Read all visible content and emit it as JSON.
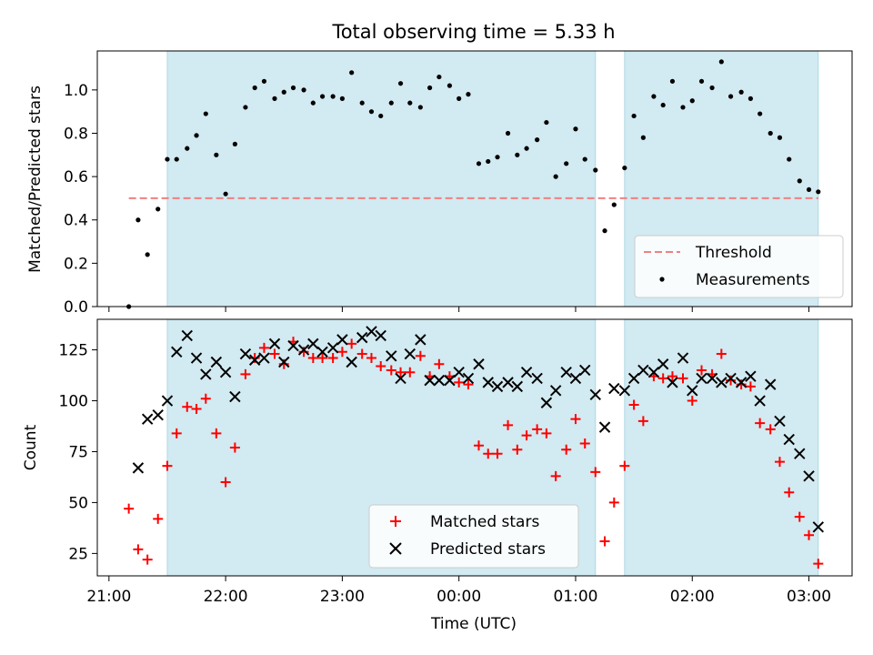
{
  "chart_data": {
    "title": "Total observing time = 5.33 h",
    "xlabel": "Time (UTC)",
    "x_tick_labels": [
      "21:00",
      "22:00",
      "23:00",
      "00:00",
      "01:00",
      "02:00",
      "03:00"
    ],
    "x_tick_hours": [
      0,
      1,
      2,
      3,
      4,
      5,
      6
    ],
    "x_origin": "21:00 UTC",
    "xlim_hours": [
      -0.1,
      6.37
    ],
    "observing_windows_hours": [
      [
        0.5,
        4.17
      ],
      [
        4.42,
        6.08
      ]
    ],
    "window_color": "#add8e6",
    "top": {
      "type": "scatter",
      "ylabel": "Matched/Predicted stars",
      "ylim": [
        0,
        1.18
      ],
      "yticks": [
        "0.0",
        "0.2",
        "0.4",
        "0.6",
        "0.8",
        "1.0"
      ],
      "yticks_values": [
        0,
        0.2,
        0.4,
        0.6,
        0.8,
        1.0
      ],
      "threshold": {
        "name": "Threshold",
        "value": 0.5,
        "x_range_hours": [
          0.17,
          6.08
        ],
        "color": "#f08080",
        "style": "dashed"
      },
      "measurements": {
        "name": "Measurements",
        "color": "#000000",
        "points": [
          [
            0.17,
            0.0
          ],
          [
            0.25,
            0.4
          ],
          [
            0.33,
            0.24
          ],
          [
            0.42,
            0.45
          ],
          [
            0.5,
            0.68
          ],
          [
            0.58,
            0.68
          ],
          [
            0.67,
            0.73
          ],
          [
            0.75,
            0.79
          ],
          [
            0.83,
            0.89
          ],
          [
            0.92,
            0.7
          ],
          [
            1.0,
            0.52
          ],
          [
            1.08,
            0.75
          ],
          [
            1.17,
            0.92
          ],
          [
            1.25,
            1.01
          ],
          [
            1.33,
            1.04
          ],
          [
            1.42,
            0.96
          ],
          [
            1.5,
            0.99
          ],
          [
            1.58,
            1.01
          ],
          [
            1.67,
            1.0
          ],
          [
            1.75,
            0.94
          ],
          [
            1.83,
            0.97
          ],
          [
            1.92,
            0.97
          ],
          [
            2.0,
            0.96
          ],
          [
            2.08,
            1.08
          ],
          [
            2.17,
            0.94
          ],
          [
            2.25,
            0.9
          ],
          [
            2.33,
            0.88
          ],
          [
            2.42,
            0.94
          ],
          [
            2.5,
            1.03
          ],
          [
            2.58,
            0.94
          ],
          [
            2.67,
            0.92
          ],
          [
            2.75,
            1.01
          ],
          [
            2.83,
            1.06
          ],
          [
            2.92,
            1.02
          ],
          [
            3.0,
            0.96
          ],
          [
            3.08,
            0.98
          ],
          [
            3.17,
            0.66
          ],
          [
            3.25,
            0.67
          ],
          [
            3.33,
            0.69
          ],
          [
            3.42,
            0.8
          ],
          [
            3.5,
            0.7
          ],
          [
            3.58,
            0.73
          ],
          [
            3.67,
            0.77
          ],
          [
            3.75,
            0.85
          ],
          [
            3.83,
            0.6
          ],
          [
            3.92,
            0.66
          ],
          [
            4.0,
            0.82
          ],
          [
            4.08,
            0.68
          ],
          [
            4.17,
            0.63
          ],
          [
            4.25,
            0.35
          ],
          [
            4.33,
            0.47
          ],
          [
            4.42,
            0.64
          ],
          [
            4.5,
            0.88
          ],
          [
            4.58,
            0.78
          ],
          [
            4.67,
            0.97
          ],
          [
            4.75,
            0.93
          ],
          [
            4.83,
            1.04
          ],
          [
            4.92,
            0.92
          ],
          [
            5.0,
            0.95
          ],
          [
            5.08,
            1.04
          ],
          [
            5.17,
            1.01
          ],
          [
            5.25,
            1.13
          ],
          [
            5.33,
            0.97
          ],
          [
            5.42,
            0.99
          ],
          [
            5.5,
            0.96
          ],
          [
            5.58,
            0.89
          ],
          [
            5.67,
            0.8
          ],
          [
            5.75,
            0.78
          ],
          [
            5.83,
            0.68
          ],
          [
            5.92,
            0.58
          ],
          [
            6.0,
            0.54
          ],
          [
            6.08,
            0.53
          ]
        ]
      },
      "legend": {
        "position": "lower right",
        "entries": [
          "Threshold",
          "Measurements"
        ]
      }
    },
    "bottom": {
      "type": "scatter",
      "ylabel": "Count",
      "ylim": [
        14,
        140
      ],
      "yticks": [
        "25",
        "50",
        "75",
        "100",
        "125"
      ],
      "yticks_values": [
        25,
        50,
        75,
        100,
        125
      ],
      "series": [
        {
          "name": "Matched stars",
          "marker": "+",
          "color": "#ff0000",
          "points": [
            [
              0.17,
              47
            ],
            [
              0.25,
              27
            ],
            [
              0.33,
              22
            ],
            [
              0.42,
              42
            ],
            [
              0.5,
              68
            ],
            [
              0.58,
              84
            ],
            [
              0.67,
              97
            ],
            [
              0.75,
              96
            ],
            [
              0.83,
              101
            ],
            [
              0.92,
              84
            ],
            [
              1.0,
              60
            ],
            [
              1.08,
              77
            ],
            [
              1.17,
              113
            ],
            [
              1.25,
              121
            ],
            [
              1.33,
              126
            ],
            [
              1.42,
              123
            ],
            [
              1.5,
              118
            ],
            [
              1.58,
              129
            ],
            [
              1.67,
              124
            ],
            [
              1.75,
              121
            ],
            [
              1.83,
              121
            ],
            [
              1.92,
              121
            ],
            [
              2.0,
              124
            ],
            [
              2.08,
              128
            ],
            [
              2.17,
              123
            ],
            [
              2.25,
              121
            ],
            [
              2.33,
              117
            ],
            [
              2.42,
              115
            ],
            [
              2.5,
              114
            ],
            [
              2.58,
              114
            ],
            [
              2.67,
              122
            ],
            [
              2.75,
              112
            ],
            [
              2.83,
              118
            ],
            [
              2.92,
              112
            ],
            [
              3.0,
              109
            ],
            [
              3.08,
              108
            ],
            [
              3.17,
              78
            ],
            [
              3.25,
              74
            ],
            [
              3.33,
              74
            ],
            [
              3.42,
              88
            ],
            [
              3.5,
              76
            ],
            [
              3.58,
              83
            ],
            [
              3.67,
              86
            ],
            [
              3.75,
              84
            ],
            [
              3.83,
              63
            ],
            [
              3.92,
              76
            ],
            [
              4.0,
              91
            ],
            [
              4.08,
              79
            ],
            [
              4.17,
              65
            ],
            [
              4.25,
              31
            ],
            [
              4.33,
              50
            ],
            [
              4.42,
              68
            ],
            [
              4.5,
              98
            ],
            [
              4.58,
              90
            ],
            [
              4.67,
              112
            ],
            [
              4.75,
              111
            ],
            [
              4.83,
              112
            ],
            [
              4.92,
              111
            ],
            [
              5.0,
              100
            ],
            [
              5.08,
              115
            ],
            [
              5.17,
              113
            ],
            [
              5.25,
              123
            ],
            [
              5.33,
              110
            ],
            [
              5.42,
              108
            ],
            [
              5.5,
              107
            ],
            [
              5.58,
              89
            ],
            [
              5.67,
              86
            ],
            [
              5.75,
              70
            ],
            [
              5.83,
              55
            ],
            [
              5.92,
              43
            ],
            [
              6.0,
              34
            ],
            [
              6.08,
              20
            ]
          ]
        },
        {
          "name": "Predicted stars",
          "marker": "x",
          "color": "#000000",
          "points": [
            [
              0.25,
              67
            ],
            [
              0.33,
              91
            ],
            [
              0.42,
              93
            ],
            [
              0.5,
              100
            ],
            [
              0.58,
              124
            ],
            [
              0.67,
              132
            ],
            [
              0.75,
              121
            ],
            [
              0.83,
              113
            ],
            [
              0.92,
              119
            ],
            [
              1.0,
              114
            ],
            [
              1.08,
              102
            ],
            [
              1.17,
              123
            ],
            [
              1.25,
              120
            ],
            [
              1.33,
              121
            ],
            [
              1.42,
              128
            ],
            [
              1.5,
              119
            ],
            [
              1.58,
              127
            ],
            [
              1.67,
              125
            ],
            [
              1.75,
              128
            ],
            [
              1.83,
              124
            ],
            [
              1.92,
              126
            ],
            [
              2.0,
              130
            ],
            [
              2.08,
              119
            ],
            [
              2.17,
              131
            ],
            [
              2.25,
              134
            ],
            [
              2.33,
              132
            ],
            [
              2.42,
              122
            ],
            [
              2.5,
              111
            ],
            [
              2.58,
              123
            ],
            [
              2.67,
              130
            ],
            [
              2.75,
              110
            ],
            [
              2.83,
              110
            ],
            [
              2.92,
              110
            ],
            [
              3.0,
              114
            ],
            [
              3.08,
              111
            ],
            [
              3.17,
              118
            ],
            [
              3.25,
              109
            ],
            [
              3.33,
              107
            ],
            [
              3.42,
              109
            ],
            [
              3.5,
              107
            ],
            [
              3.58,
              114
            ],
            [
              3.67,
              111
            ],
            [
              3.75,
              99
            ],
            [
              3.83,
              105
            ],
            [
              3.92,
              114
            ],
            [
              4.0,
              111
            ],
            [
              4.08,
              115
            ],
            [
              4.17,
              103
            ],
            [
              4.25,
              87
            ],
            [
              4.33,
              106
            ],
            [
              4.42,
              105
            ],
            [
              4.5,
              111
            ],
            [
              4.58,
              115
            ],
            [
              4.67,
              114
            ],
            [
              4.75,
              118
            ],
            [
              4.83,
              109
            ],
            [
              4.92,
              121
            ],
            [
              5.0,
              105
            ],
            [
              5.08,
              111
            ],
            [
              5.17,
              111
            ],
            [
              5.25,
              109
            ],
            [
              5.33,
              111
            ],
            [
              5.42,
              109
            ],
            [
              5.5,
              112
            ],
            [
              5.58,
              100
            ],
            [
              5.67,
              108
            ],
            [
              5.75,
              90
            ],
            [
              5.83,
              81
            ],
            [
              5.92,
              74
            ],
            [
              6.0,
              63
            ],
            [
              6.08,
              38
            ]
          ]
        }
      ],
      "legend": {
        "position": "lower center",
        "entries": [
          "Matched stars",
          "Predicted stars"
        ]
      }
    }
  }
}
